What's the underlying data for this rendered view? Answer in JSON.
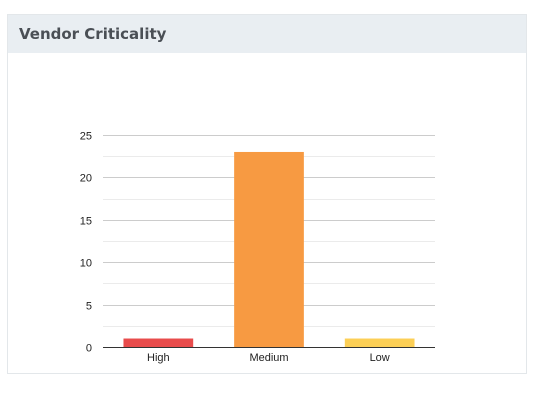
{
  "card": {
    "title": "Vendor Criticality"
  },
  "chart_data": {
    "type": "bar",
    "categories": [
      "High",
      "Medium",
      "Low"
    ],
    "values": [
      1,
      23,
      1
    ],
    "colors": [
      "#e84c4c",
      "#f79a42",
      "#fccf56"
    ],
    "yticks": [
      0,
      5,
      10,
      15,
      20,
      25
    ],
    "ylim": [
      0,
      25
    ],
    "grid": true,
    "minor_grid": true,
    "title": "",
    "xlabel": "",
    "ylabel": "",
    "legend": "none"
  }
}
